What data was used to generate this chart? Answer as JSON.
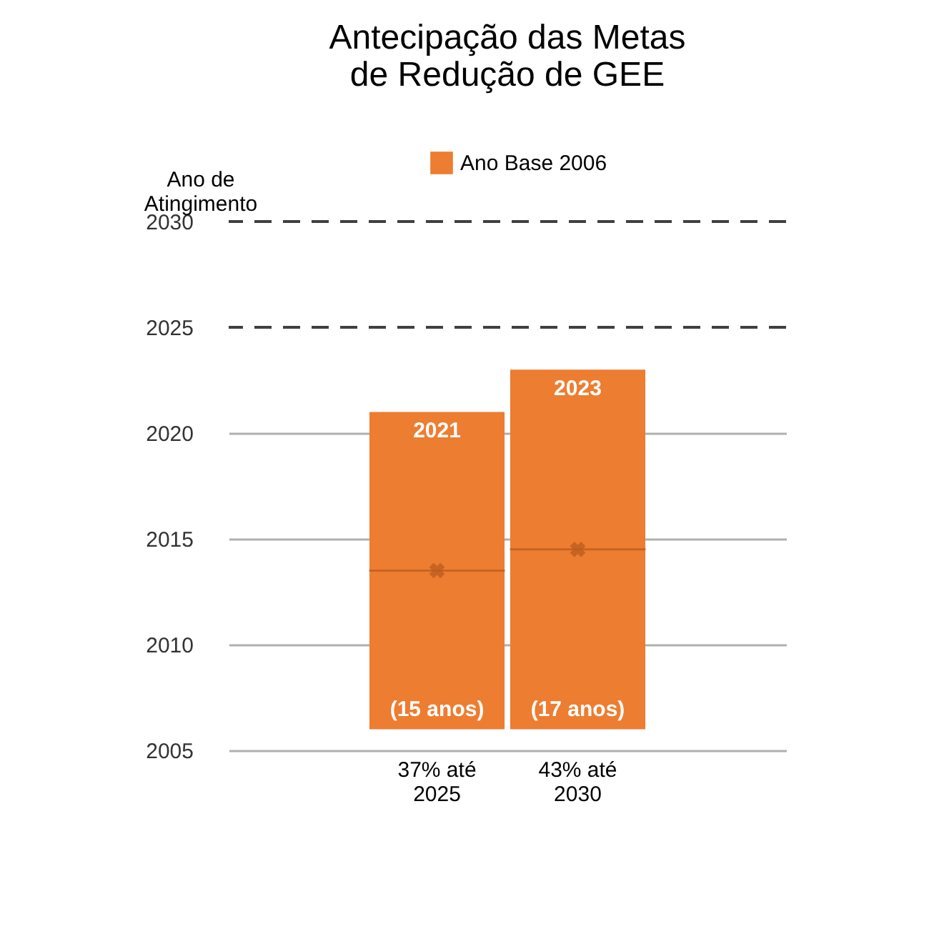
{
  "chart_data": {
    "type": "box",
    "title": "Antecipação das Metas de Redução de GEE",
    "ylabel": "Ano de Atingimento",
    "categories": [
      "37% até 2025",
      "43% até 2030"
    ],
    "series": [
      {
        "name": "Ano Base 2006",
        "color": "#ed7d31",
        "boxes": [
          {
            "low": 2006,
            "q1": 2006,
            "median": 2013.5,
            "q3": 2021,
            "high": 2021,
            "mean": 2013.5
          },
          {
            "low": 2006,
            "q1": 2006,
            "median": 2014.5,
            "q3": 2023,
            "high": 2023,
            "mean": 2014.5
          }
        ]
      }
    ],
    "ylim": [
      2005,
      2030
    ],
    "yticks": [
      2005,
      2010,
      2015,
      2020,
      2025,
      2030
    ],
    "grid": "y",
    "legend": "top",
    "ref_lines": [
      {
        "axis": "y",
        "value": 2030,
        "color": "#404040",
        "line_style": "dashed"
      },
      {
        "axis": "y",
        "value": 2025,
        "color": "#404040",
        "line_style": "dashed"
      }
    ],
    "annotations": [
      {
        "text": "2021",
        "x": "37% até 2025",
        "y": 2021
      },
      {
        "text": "2023",
        "x": "43% até 2030",
        "y": 2023
      },
      {
        "text": "(15 anos)",
        "x": "37% até 2025",
        "y": 2006
      },
      {
        "text": "(17 anos)",
        "x": "43% até 2030",
        "y": 2006
      }
    ]
  }
}
